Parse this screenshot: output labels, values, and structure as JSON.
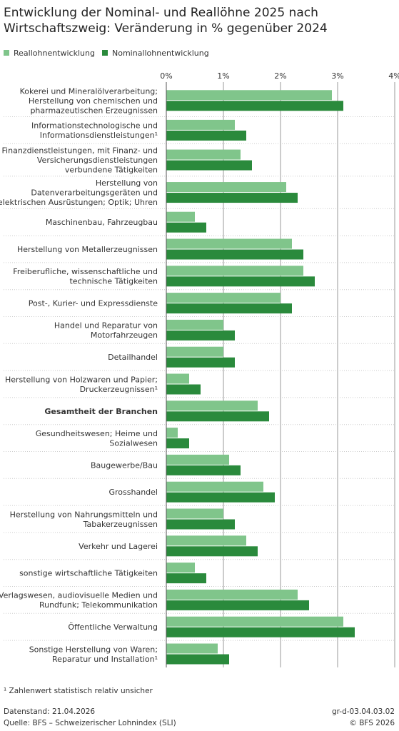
{
  "chart_data": {
    "type": "hbar",
    "title": "Entwicklung der Nominal- und Reallöhne 2025 nach\nWirtschaftszweig: Veränderung in % gegenüber 2024",
    "categories": [
      "Kokerei und Mineralölverarbeitung;\nHerstellung von chemischen und\npharmazeutischen Erzeugnissen",
      "Informationstechnologische und\nInformationsdienstleistungen¹",
      "Finanzdienstleistungen, mit Finanz- und\nVersicherungsdienstleistungen\nverbundene Tätigkeiten",
      "Herstellung von\nDatenverarbeitungsgeräten und\nelektrischen Ausrüstungen; Optik; Uhren",
      "Maschinenbau, Fahrzeugbau",
      "Herstellung von Metallerzeugnissen",
      "Freiberufliche, wissenschaftliche und\ntechnische Tätigkeiten",
      "Post-, Kurier- und Expressdienste",
      "Handel und Reparatur von\nMotorfahrzeugen",
      "Detailhandel",
      "Herstellung von Holzwaren und Papier;\nDruckerzeugnissen¹",
      "Gesamtheit der Branchen",
      "Gesundheitswesen; Heime und\nSozialwesen",
      "Baugewerbe/Bau",
      "Grosshandel",
      "Herstellung von Nahrungsmitteln und\nTabakerzeugnissen",
      "Verkehr und Lagerei",
      "sonstige wirtschaftliche Tätigkeiten",
      "Verlagswesen, audiovisuelle Medien und\nRundfunk; Telekommunikation",
      "Öffentliche Verwaltung",
      "Sonstige Herstellung von Waren;\nReparatur und Installation¹"
    ],
    "bold_category_index": 11,
    "series": [
      {
        "name": "Reallohnentwicklung",
        "color": "#80c58b",
        "values": [
          2.9,
          1.2,
          1.3,
          2.1,
          0.5,
          2.2,
          2.4,
          2.0,
          1.0,
          1.0,
          0.4,
          1.6,
          0.2,
          1.1,
          1.7,
          1.0,
          1.4,
          0.5,
          2.3,
          3.1,
          0.9
        ]
      },
      {
        "name": "Nominallohnentwicklung",
        "color": "#2a8a3c",
        "values": [
          3.1,
          1.4,
          1.5,
          2.3,
          0.7,
          2.4,
          2.6,
          2.2,
          1.2,
          1.2,
          0.6,
          1.8,
          0.4,
          1.3,
          1.9,
          1.2,
          1.6,
          0.7,
          2.5,
          3.3,
          1.1
        ]
      }
    ],
    "xlim": [
      0,
      4
    ],
    "xticks": [
      {
        "value": 0,
        "label": "0%"
      },
      {
        "value": 1,
        "label": "1%"
      },
      {
        "value": 2,
        "label": "2%"
      },
      {
        "value": 3,
        "label": "3%"
      },
      {
        "value": 4,
        "label": "4%"
      }
    ],
    "grid": true,
    "footnote": "¹ Zahlenwert statistisch relativ unsicher",
    "data_status": "Datenstand: 21.04.2026",
    "source": "Quelle: BFS – Schweizerischer Lohnindex (SLI)",
    "graphic_id": "gr-d-03.04.03.02",
    "copyright": "© BFS 2026"
  }
}
